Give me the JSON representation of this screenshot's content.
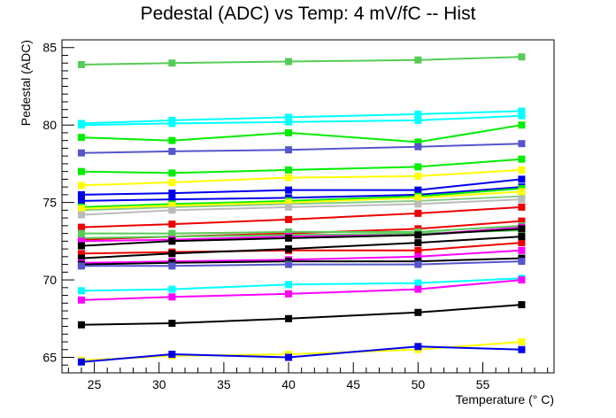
{
  "chart_data": {
    "type": "line",
    "title": "Pedestal (ADC) vs Temp: 4 mV/fC -- Hist",
    "xlabel": "Temperature (° C)",
    "ylabel": "Pedestal (ADC)",
    "xlim": [
      22.5,
      60.5
    ],
    "ylim": [
      64.0,
      85.5
    ],
    "xticks": [
      25,
      30,
      35,
      40,
      45,
      50,
      55
    ],
    "yticks": [
      65,
      70,
      75,
      80,
      85
    ],
    "x": [
      24,
      31,
      40,
      50,
      58
    ],
    "grid": false,
    "series": [
      {
        "color": "#55cc55",
        "values": [
          83.9,
          84.0,
          84.1,
          84.2,
          84.4
        ]
      },
      {
        "color": "#00ffff",
        "values": [
          80.1,
          80.3,
          80.5,
          80.7,
          80.9
        ]
      },
      {
        "color": "#00ffff",
        "values": [
          80.0,
          80.1,
          80.2,
          80.3,
          80.6
        ]
      },
      {
        "color": "#00ee00",
        "values": [
          79.2,
          79.0,
          79.5,
          78.9,
          80.0
        ]
      },
      {
        "color": "#5555cc",
        "values": [
          78.2,
          78.3,
          78.4,
          78.6,
          78.8
        ]
      },
      {
        "color": "#00ee00",
        "values": [
          77.0,
          76.9,
          77.1,
          77.3,
          77.8
        ]
      },
      {
        "color": "#ffff00",
        "values": [
          76.1,
          76.3,
          76.6,
          76.7,
          77.1
        ]
      },
      {
        "color": "#0000ee",
        "values": [
          75.5,
          75.6,
          75.8,
          75.8,
          76.5
        ]
      },
      {
        "color": "#0000ee",
        "values": [
          75.1,
          75.2,
          75.3,
          75.5,
          76.0
        ]
      },
      {
        "color": "#00ee00",
        "values": [
          74.7,
          74.9,
          75.1,
          75.4,
          75.9
        ]
      },
      {
        "color": "#88cc88",
        "values": [
          74.5,
          74.7,
          74.9,
          75.1,
          75.4
        ]
      },
      {
        "color": "#ffff00",
        "values": [
          74.6,
          74.8,
          75.0,
          75.3,
          75.7
        ]
      },
      {
        "color": "#bbbbbb",
        "values": [
          74.2,
          74.5,
          74.7,
          74.9,
          75.2
        ]
      },
      {
        "color": "#ee0000",
        "values": [
          73.4,
          73.6,
          73.9,
          74.3,
          74.7
        ]
      },
      {
        "color": "#ee0000",
        "values": [
          72.6,
          72.8,
          73.0,
          73.3,
          73.8
        ]
      },
      {
        "color": "#55cc55",
        "values": [
          73.0,
          73.0,
          73.1,
          73.1,
          73.5
        ]
      },
      {
        "color": "#55cc55",
        "values": [
          72.7,
          72.8,
          72.9,
          73.0,
          73.2
        ]
      },
      {
        "color": "#ff00ff",
        "values": [
          72.5,
          72.6,
          72.8,
          72.9,
          73.4
        ]
      },
      {
        "color": "#000000",
        "values": [
          72.2,
          72.5,
          72.7,
          72.9,
          73.3
        ]
      },
      {
        "color": "#ee0000",
        "values": [
          71.7,
          71.8,
          71.9,
          71.9,
          72.4
        ]
      },
      {
        "color": "#000000",
        "values": [
          71.4,
          71.7,
          72.0,
          72.4,
          72.8
        ]
      },
      {
        "color": "#ff00ff",
        "values": [
          71.1,
          71.2,
          71.3,
          71.5,
          71.9
        ]
      },
      {
        "color": "#000000",
        "values": [
          71.0,
          71.1,
          71.2,
          71.2,
          71.4
        ]
      },
      {
        "color": "#5555cc",
        "values": [
          70.9,
          70.9,
          71.0,
          71.0,
          71.2
        ]
      },
      {
        "color": "#00ffff",
        "values": [
          69.3,
          69.4,
          69.7,
          69.8,
          70.1
        ]
      },
      {
        "color": "#ff00ff",
        "values": [
          68.7,
          68.9,
          69.1,
          69.4,
          70.0
        ]
      },
      {
        "color": "#000000",
        "values": [
          67.1,
          67.2,
          67.5,
          67.9,
          68.4
        ]
      },
      {
        "color": "#ffff00",
        "values": [
          64.8,
          65.1,
          65.2,
          65.5,
          66.0
        ]
      },
      {
        "color": "#0000ee",
        "values": [
          64.7,
          65.2,
          65.0,
          65.7,
          65.5
        ]
      }
    ]
  }
}
